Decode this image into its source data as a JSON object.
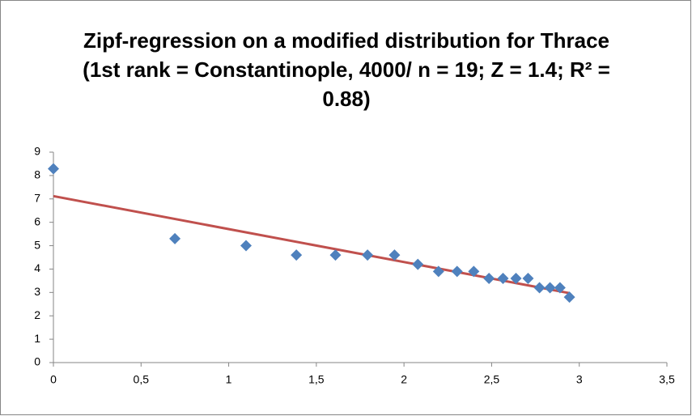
{
  "chart_data": {
    "type": "scatter",
    "title": "Zipf-regression on a modified distribution for Thrace (1st rank = Constantinople, 4000/ n = 19; Z = 1.4; R² = 0.88)",
    "series": [
      {
        "color": "#4f81bd",
        "x": [
          0,
          0.693,
          1.099,
          1.386,
          1.609,
          1.792,
          1.946,
          2.079,
          2.197,
          2.303,
          2.398,
          2.485,
          2.565,
          2.639,
          2.708,
          2.773,
          2.833,
          2.89,
          2.944
        ],
        "values": [
          8.29,
          5.3,
          5.0,
          4.6,
          4.6,
          4.6,
          4.6,
          4.2,
          3.9,
          3.9,
          3.9,
          3.6,
          3.6,
          3.6,
          3.6,
          3.2,
          3.2,
          3.2,
          2.8
        ]
      }
    ],
    "trendline": {
      "color": "#c0504d",
      "x": [
        0,
        2.944
      ],
      "values": [
        7.12,
        2.97
      ]
    },
    "xlim": [
      0,
      3.5
    ],
    "xticks": [
      0,
      {
        "value": 0.5,
        "label": "0,5"
      },
      1,
      {
        "value": 1.5,
        "label": "1,5"
      },
      2,
      {
        "value": 2.5,
        "label": "2,5"
      },
      3,
      {
        "value": 3.5,
        "label": "3,5"
      }
    ],
    "ylim": [
      0,
      9
    ],
    "yticks": [
      0,
      1,
      2,
      3,
      4,
      5,
      6,
      7,
      8,
      9
    ]
  }
}
